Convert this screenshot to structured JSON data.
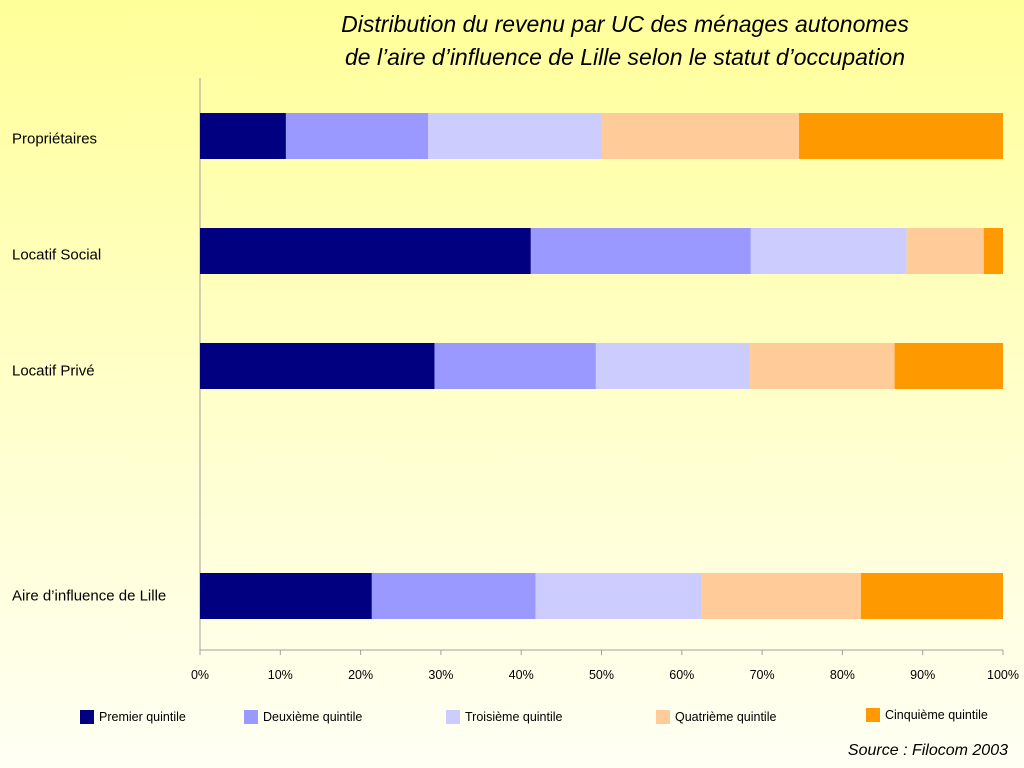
{
  "title_line1": "Distribution du revenu par UC des ménages autonomes",
  "title_line2": "de l’aire d’influence de Lille selon le statut d’occupation",
  "source": "Source : Filocom 2003",
  "colors": [
    "#000080",
    "#9999ff",
    "#ccccff",
    "#ffcc99",
    "#ff9900"
  ],
  "chart_data": {
    "type": "bar",
    "orientation": "horizontal",
    "stacked": "percent",
    "title": "Distribution du revenu par UC des ménages autonomes de l’aire d’influence de Lille selon le statut d’occupation",
    "categories": [
      "Propriétaires",
      "Locatif Social",
      "Locatif Privé",
      "Aire d’influence de Lille"
    ],
    "series": [
      {
        "name": "Premier quintile",
        "values": [
          10.7,
          41.2,
          29.2,
          21.4
        ]
      },
      {
        "name": "Deuxième quintile",
        "values": [
          17.7,
          27.4,
          20.1,
          20.4
        ]
      },
      {
        "name": "Troisième quintile",
        "values": [
          21.6,
          19.4,
          19.2,
          20.6
        ]
      },
      {
        "name": "Quatrième quintile",
        "values": [
          24.6,
          9.6,
          18.0,
          19.9
        ]
      },
      {
        "name": "Cinquième quintile",
        "values": [
          25.4,
          2.4,
          13.5,
          17.7
        ]
      }
    ],
    "xlim": [
      0,
      100
    ],
    "xticks": [
      "0%",
      "10%",
      "20%",
      "30%",
      "40%",
      "50%",
      "60%",
      "70%",
      "80%",
      "90%",
      "100%"
    ],
    "grid": false,
    "legend_position": "bottom"
  }
}
